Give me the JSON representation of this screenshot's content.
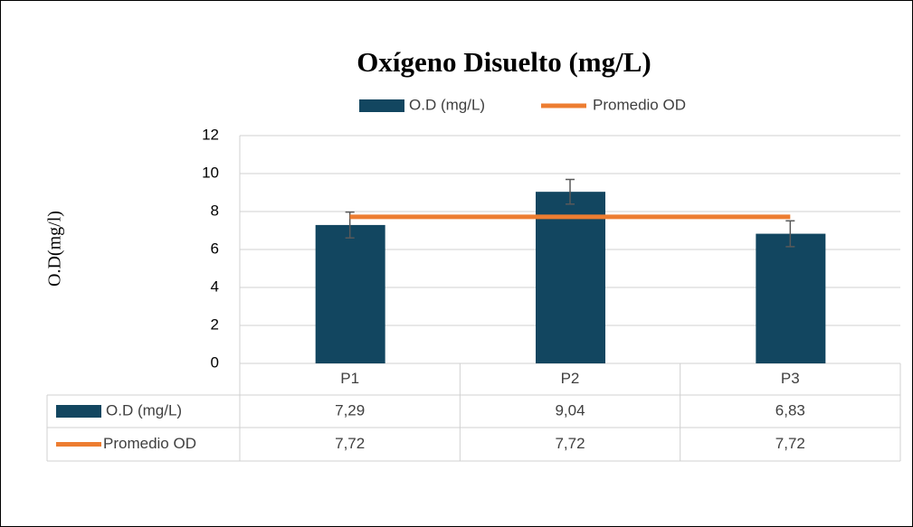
{
  "chart_data": {
    "type": "bar",
    "title": "Oxígeno Disuelto (mg/L)",
    "y_label": "O.D(mg/l)",
    "categories": [
      "P1",
      "P2",
      "P3"
    ],
    "series": [
      {
        "name": "O.D (mg/L)",
        "type": "bar",
        "color": "#124660",
        "values": [
          7.29,
          9.04,
          6.83
        ],
        "value_labels": [
          "7,29",
          "9,04",
          "6,83"
        ],
        "errors": [
          0.68,
          0.65,
          0.68
        ]
      },
      {
        "name": "Promedio OD",
        "type": "line",
        "color": "#ed7d31",
        "values": [
          7.72,
          7.72,
          7.72
        ],
        "value_labels": [
          "7,72",
          "7,72",
          "7,72"
        ]
      }
    ],
    "ylim": [
      0,
      12
    ],
    "yticks": [
      0,
      2,
      4,
      6,
      8,
      10,
      12
    ],
    "grid": true,
    "legend": "top",
    "data_table": true
  }
}
